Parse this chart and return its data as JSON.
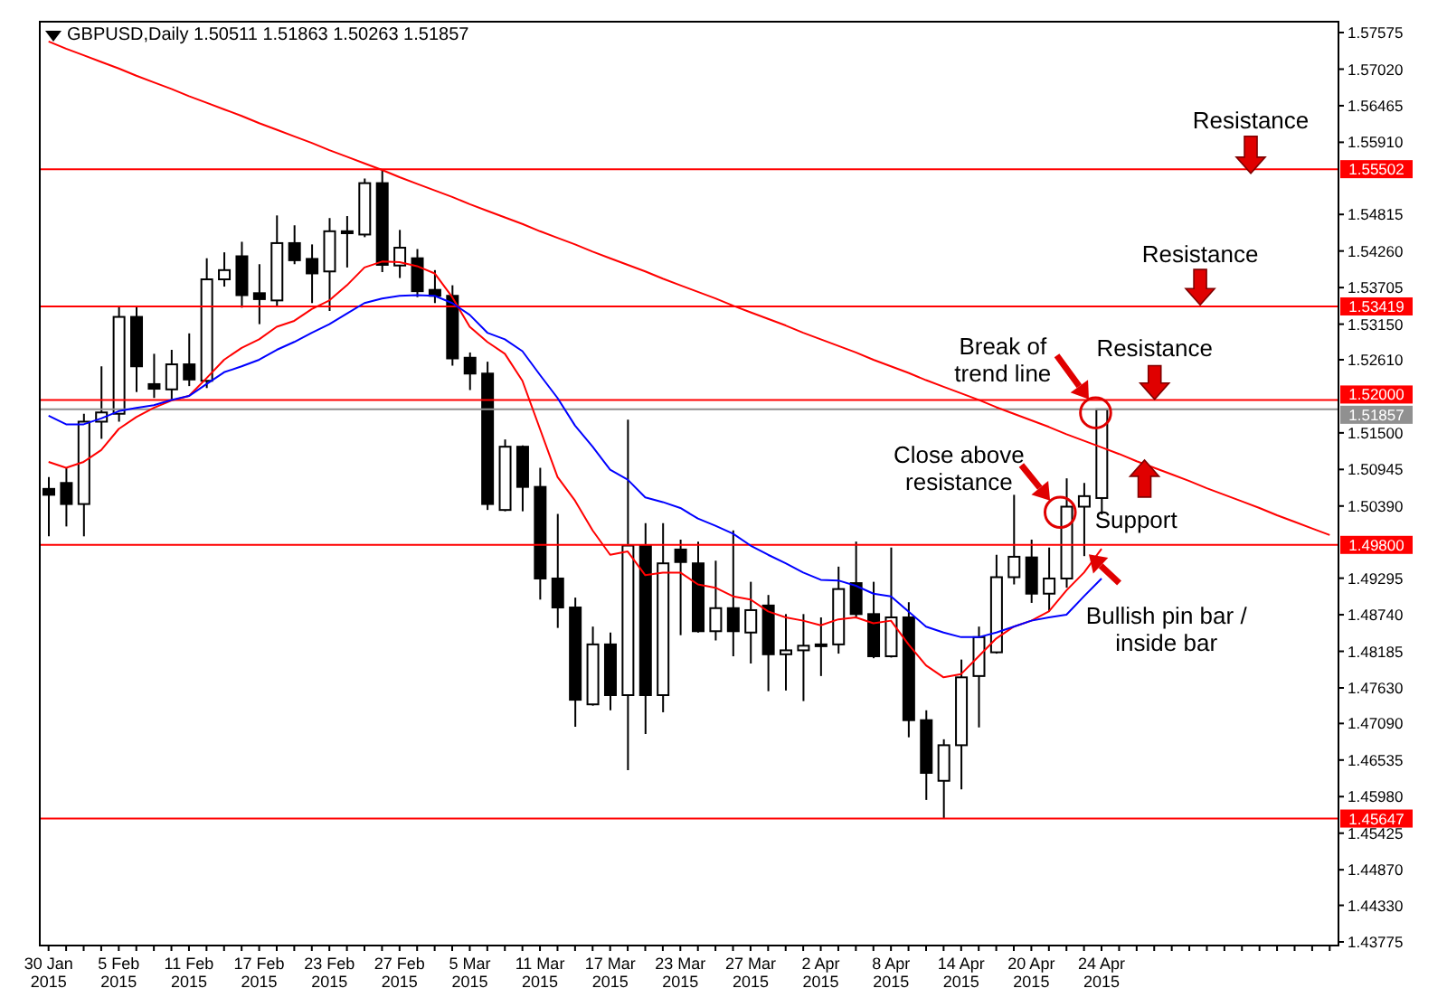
{
  "chart_data": {
    "type": "candlestick",
    "title": "GBPUSD,Daily  1.50511 1.51863 1.50263 1.51857",
    "categories": [
      "30 Jan 2015",
      null,
      null,
      null,
      "5 Feb 2015",
      null,
      null,
      null,
      "11 Feb 2015",
      null,
      null,
      null,
      "17 Feb 2015",
      null,
      null,
      null,
      "23 Feb 2015",
      null,
      null,
      null,
      "27 Feb 2015",
      null,
      null,
      null,
      "5 Mar 2015",
      null,
      null,
      null,
      "11 Mar 2015",
      null,
      null,
      null,
      "17 Mar 2015",
      null,
      null,
      null,
      "23 Mar 2015",
      null,
      null,
      null,
      "27 Mar 2015",
      null,
      null,
      null,
      "2 Apr 2015",
      null,
      null,
      null,
      "8 Apr 2015",
      null,
      null,
      null,
      "14 Apr 2015",
      null,
      null,
      null,
      "20 Apr 2015",
      null,
      null,
      null,
      "24 Apr 2015",
      null,
      null,
      null,
      null,
      null,
      null,
      null,
      null,
      null,
      null,
      null,
      null,
      null
    ],
    "ohlc": [
      [
        1.5065,
        1.5083,
        1.4993,
        1.5056
      ],
      [
        1.5074,
        1.5097,
        1.5008,
        1.5042
      ],
      [
        1.5042,
        1.5179,
        1.4993,
        1.5167
      ],
      [
        1.5167,
        1.5251,
        1.5141,
        1.5181
      ],
      [
        1.5179,
        1.5342,
        1.5167,
        1.5326
      ],
      [
        1.5326,
        1.5342,
        1.5212,
        1.5251
      ],
      [
        1.5224,
        1.527,
        1.5203,
        1.5217
      ],
      [
        1.5216,
        1.5276,
        1.5201,
        1.5254
      ],
      [
        1.5254,
        1.5301,
        1.5221,
        1.5231
      ],
      [
        1.5229,
        1.5415,
        1.5218,
        1.5383
      ],
      [
        1.5383,
        1.5424,
        1.5372,
        1.5397
      ],
      [
        1.5418,
        1.544,
        1.534,
        1.5359
      ],
      [
        1.5362,
        1.5406,
        1.5315,
        1.5353
      ],
      [
        1.5351,
        1.548,
        1.5342,
        1.5438
      ],
      [
        1.5438,
        1.5465,
        1.5406,
        1.5412
      ],
      [
        1.5414,
        1.5436,
        1.5347,
        1.5392
      ],
      [
        1.5395,
        1.5476,
        1.5335,
        1.5456
      ],
      [
        1.5456,
        1.5479,
        1.5401,
        1.5453
      ],
      [
        1.5451,
        1.5536,
        1.5447,
        1.5529
      ],
      [
        1.5529,
        1.555,
        1.5394,
        1.5405
      ],
      [
        1.5404,
        1.5458,
        1.5385,
        1.5431
      ],
      [
        1.5415,
        1.5429,
        1.5356,
        1.5365
      ],
      [
        1.5367,
        1.5397,
        1.5347,
        1.5358
      ],
      [
        1.5358,
        1.5374,
        1.5252,
        1.5263
      ],
      [
        1.5264,
        1.5272,
        1.5215,
        1.524
      ],
      [
        1.524,
        1.5258,
        1.5033,
        1.5042
      ],
      [
        1.5033,
        1.514,
        1.5031,
        1.5129
      ],
      [
        1.5129,
        1.5131,
        1.5031,
        1.5068
      ],
      [
        1.5068,
        1.5097,
        1.4897,
        1.4929
      ],
      [
        1.4929,
        1.5027,
        1.4854,
        1.4885
      ],
      [
        1.4885,
        1.49,
        1.4704,
        1.4745
      ],
      [
        1.4738,
        1.4856,
        1.4736,
        1.4829
      ],
      [
        1.4829,
        1.4847,
        1.4729,
        1.4752
      ],
      [
        1.4752,
        1.517,
        1.4638,
        1.4979
      ],
      [
        1.4979,
        1.5013,
        1.4693,
        1.4752
      ],
      [
        1.4752,
        1.5013,
        1.4726,
        1.4952
      ],
      [
        1.4973,
        1.4988,
        1.4843,
        1.4954
      ],
      [
        1.4952,
        1.4985,
        1.4847,
        1.4849
      ],
      [
        1.4849,
        1.4956,
        1.4835,
        1.4884
      ],
      [
        1.4884,
        1.5002,
        1.4811,
        1.4849
      ],
      [
        1.4847,
        1.4924,
        1.48,
        1.4881
      ],
      [
        1.4888,
        1.4904,
        1.4758,
        1.4814
      ],
      [
        1.4814,
        1.4875,
        1.4759,
        1.482
      ],
      [
        1.482,
        1.4875,
        1.4743,
        1.4827
      ],
      [
        1.4829,
        1.487,
        1.4781,
        1.4827
      ],
      [
        1.4829,
        1.4947,
        1.4815,
        1.4913
      ],
      [
        1.4922,
        1.4985,
        1.487,
        1.4875
      ],
      [
        1.4875,
        1.4924,
        1.4808,
        1.4811
      ],
      [
        1.4811,
        1.4976,
        1.4809,
        1.487
      ],
      [
        1.487,
        1.4893,
        1.4688,
        1.4714
      ],
      [
        1.4714,
        1.4729,
        1.4593,
        1.4634
      ],
      [
        1.4622,
        1.4685,
        1.4565,
        1.4676
      ],
      [
        1.4676,
        1.4806,
        1.4609,
        1.4779
      ],
      [
        1.4781,
        1.4856,
        1.4703,
        1.484
      ],
      [
        1.4817,
        1.4965,
        1.4815,
        1.4931
      ],
      [
        1.4931,
        1.5056,
        1.492,
        1.4962
      ],
      [
        1.4961,
        1.4988,
        1.4892,
        1.4906
      ],
      [
        1.4906,
        1.4976,
        1.4879,
        1.4929
      ],
      [
        1.4929,
        1.5081,
        1.4915,
        1.5038
      ],
      [
        1.5038,
        1.5074,
        1.4963,
        1.5054
      ],
      [
        1.50511,
        1.51863,
        1.50263,
        1.51857
      ],
      null,
      null,
      null,
      null,
      null,
      null,
      null,
      null,
      null,
      null,
      null,
      null,
      null
    ],
    "series": [
      {
        "type": "line",
        "color": "#ff0000",
        "values": [
          1.5106,
          1.5097,
          1.5106,
          1.5124,
          1.5156,
          1.5174,
          1.5188,
          1.5199,
          1.5206,
          1.5233,
          1.5261,
          1.5279,
          1.5292,
          1.5311,
          1.532,
          1.5338,
          1.5351,
          1.5374,
          1.5401,
          1.541,
          1.5409,
          1.5403,
          1.5392,
          1.5356,
          1.5311,
          1.5288,
          1.527,
          1.5229,
          1.5156,
          1.5083,
          1.5047,
          1.5002,
          1.4965,
          1.497,
          1.4934,
          1.4938,
          1.4938,
          1.492,
          1.4915,
          1.4902,
          1.4897,
          1.4879,
          1.487,
          1.4865,
          1.4858,
          1.4867,
          1.487,
          1.4861,
          1.4865,
          1.4829,
          1.4797,
          1.4779,
          1.4784,
          1.4811,
          1.4838,
          1.4856,
          1.4865,
          1.4879,
          1.4911,
          1.4938,
          1.4974,
          null,
          null,
          null,
          null,
          null,
          null,
          null,
          null,
          null,
          null,
          null,
          null,
          null
        ]
      },
      {
        "type": "line",
        "color": "#0000ff",
        "values": [
          1.5176,
          1.5163,
          1.5163,
          1.5172,
          1.5183,
          1.5188,
          1.5192,
          1.52,
          1.5206,
          1.5224,
          1.5242,
          1.5251,
          1.5261,
          1.5276,
          1.5288,
          1.5302,
          1.5315,
          1.5331,
          1.5347,
          1.5354,
          1.5358,
          1.5359,
          1.5358,
          1.5347,
          1.5329,
          1.5302,
          1.5292,
          1.5274,
          1.5238,
          1.5203,
          1.5161,
          1.5129,
          1.5094,
          1.5079,
          1.5052,
          1.5045,
          1.5036,
          1.502,
          1.5009,
          1.4997,
          1.4979,
          1.4965,
          1.4952,
          1.4938,
          1.4927,
          1.4926,
          1.4918,
          1.4906,
          1.4902,
          1.4879,
          1.4856,
          1.4847,
          1.484,
          1.484,
          1.4847,
          1.4856,
          1.4865,
          1.487,
          1.4874,
          1.4902,
          1.4929,
          null,
          null,
          null,
          null,
          null,
          null,
          null,
          null,
          null,
          null,
          null,
          null,
          null
        ]
      },
      {
        "type": "line",
        "color": "#ff0000",
        "values": [
          1.5744,
          1.5733,
          1.5723,
          1.5713,
          1.5703,
          1.5692,
          1.5682,
          1.5672,
          1.5661,
          1.5651,
          1.5641,
          1.5631,
          1.562,
          1.561,
          1.56,
          1.559,
          1.5579,
          1.5569,
          1.5559,
          1.5549,
          1.5538,
          1.5528,
          1.5518,
          1.5508,
          1.5497,
          1.5487,
          1.5477,
          1.5467,
          1.5456,
          1.5446,
          1.5436,
          1.5425,
          1.5415,
          1.5405,
          1.5395,
          1.5384,
          1.5374,
          1.5364,
          1.5354,
          1.5343,
          1.5333,
          1.5323,
          1.5313,
          1.5302,
          1.5292,
          1.5282,
          1.5272,
          1.5261,
          1.5251,
          1.5241,
          1.523,
          1.522,
          1.521,
          1.52,
          1.5189,
          1.5179,
          1.5169,
          1.5159,
          1.5148,
          1.5138,
          1.5128,
          1.5118,
          1.5107,
          1.5097,
          1.5087,
          1.5077,
          1.5066,
          1.5056,
          1.5046,
          1.5036,
          1.5025,
          1.5015,
          1.5005,
          1.4995
        ]
      }
    ],
    "ylim": [
      1.4372,
      1.5774
    ],
    "yticks": [
      {
        "value": 1.57575,
        "label": "1.57575"
      },
      {
        "value": 1.5702,
        "label": "1.57020"
      },
      {
        "value": 1.56465,
        "label": "1.56465"
      },
      {
        "value": 1.5591,
        "label": "1.55910"
      },
      {
        "value": 1.54815,
        "label": "1.54815"
      },
      {
        "value": 1.5426,
        "label": "1.54260"
      },
      {
        "value": 1.53705,
        "label": "1.53705"
      },
      {
        "value": 1.5315,
        "label": "1.53150"
      },
      {
        "value": 1.5261,
        "label": "1.52610"
      },
      {
        "value": 1.515,
        "label": "1.51500"
      },
      {
        "value": 1.50945,
        "label": "1.50945"
      },
      {
        "value": 1.5039,
        "label": "1.50390"
      },
      {
        "value": 1.49295,
        "label": "1.49295"
      },
      {
        "value": 1.4874,
        "label": "1.48740"
      },
      {
        "value": 1.48185,
        "label": "1.48185"
      },
      {
        "value": 1.4763,
        "label": "1.47630"
      },
      {
        "value": 1.4709,
        "label": "1.47090"
      },
      {
        "value": 1.46535,
        "label": "1.46535"
      },
      {
        "value": 1.4598,
        "label": "1.45980"
      },
      {
        "value": 1.45425,
        "label": "1.45425"
      },
      {
        "value": 1.4487,
        "label": "1.44870"
      },
      {
        "value": 1.4433,
        "label": "1.44330"
      },
      {
        "value": 1.43775,
        "label": "1.43775"
      }
    ],
    "ref_lines": [
      {
        "axis": "y",
        "value": 1.55502,
        "label": "1.55502",
        "color": "#ff0000"
      },
      {
        "axis": "y",
        "value": 1.53419,
        "label": "1.53419",
        "color": "#ff0000"
      },
      {
        "axis": "y",
        "value": 1.52,
        "label": "1.52000",
        "color": "#ff0000"
      },
      {
        "axis": "y",
        "value": 1.51857,
        "label": "1.51857",
        "color": "#909090"
      },
      {
        "axis": "y",
        "value": 1.498,
        "label": "1.49800",
        "color": "#ff0000"
      },
      {
        "axis": "y",
        "value": 1.45647,
        "label": "1.45647",
        "color": "#ff0000"
      }
    ],
    "annotations": [
      "Resistance",
      "Resistance",
      "Resistance",
      "Break of trend line",
      "Close above resistance",
      "Support",
      "Bullish pin bar / inside bar"
    ]
  }
}
